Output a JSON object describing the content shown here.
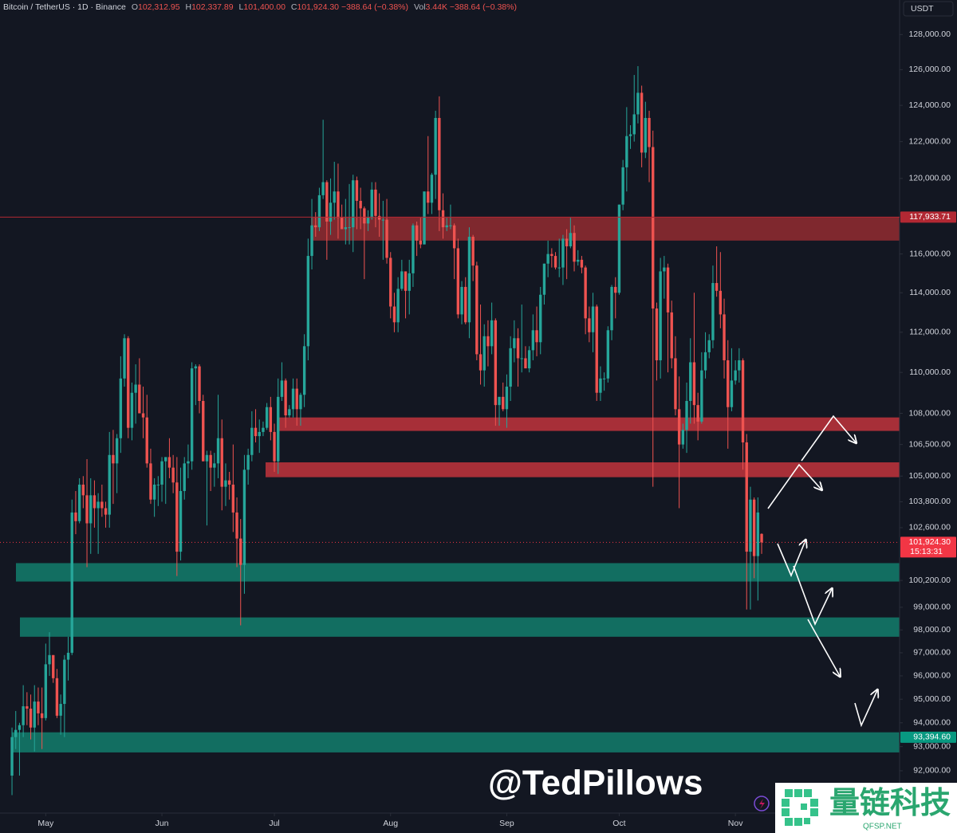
{
  "chart_data": {
    "type": "candlestick",
    "header": {
      "symbol": "Bitcoin / TetherUS · 1D · Binance",
      "o_key": "O",
      "o": "102,312.95",
      "h_key": "H",
      "h": "102,337.89",
      "l_key": "L",
      "l": "101,400.00",
      "c_key": "C",
      "c": "101,924.30",
      "change": "−388.64 (−0.38%)",
      "vol_key": "Vol",
      "vol": "3.44K",
      "vol_change": "−388.64 (−0.38%)"
    },
    "currency": "USDT",
    "watermark": "@TedPillows",
    "logo_text": "量链科技",
    "logo_sub": "QFSP.NET",
    "log_scale": true,
    "grid": false,
    "up_color": "#26a69a",
    "down_color": "#ef5350",
    "ylim": [
      90270,
      130000
    ],
    "xlim": [
      -3.2,
      236.8
    ],
    "xticks": [
      {
        "value": 9,
        "label": "May"
      },
      {
        "value": 40,
        "label": "Jun"
      },
      {
        "value": 70,
        "label": "Jul"
      },
      {
        "value": 101,
        "label": "Aug"
      },
      {
        "value": 132,
        "label": "Sep"
      },
      {
        "value": 162,
        "label": "Oct"
      },
      {
        "value": 193,
        "label": "Nov"
      }
    ],
    "yticks": [
      {
        "value": 128000,
        "label": "128,000.00"
      },
      {
        "value": 126000,
        "label": "126,000.00"
      },
      {
        "value": 124000,
        "label": "124,000.00"
      },
      {
        "value": 122000,
        "label": "122,000.00"
      },
      {
        "value": 120000,
        "label": "120,000.00"
      },
      {
        "value": 116000,
        "label": "116,000.00"
      },
      {
        "value": 114000,
        "label": "114,000.00"
      },
      {
        "value": 112000,
        "label": "112,000.00"
      },
      {
        "value": 110000,
        "label": "110,000.00"
      },
      {
        "value": 108000,
        "label": "108,000.00"
      },
      {
        "value": 106500,
        "label": "106,500.00"
      },
      {
        "value": 105000,
        "label": "105,000.00"
      },
      {
        "value": 103800,
        "label": "103,800.00"
      },
      {
        "value": 102600,
        "label": "102,600.00"
      },
      {
        "value": 100200,
        "label": "100,200.00"
      },
      {
        "value": 99000,
        "label": "99,000.00"
      },
      {
        "value": 98000,
        "label": "98,000.00"
      },
      {
        "value": 97000,
        "label": "97,000.00"
      },
      {
        "value": 96000,
        "label": "96,000.00"
      },
      {
        "value": 95000,
        "label": "95,000.00"
      },
      {
        "value": 94000,
        "label": "94,000.00"
      },
      {
        "value": 93000,
        "label": "93,000.00"
      },
      {
        "value": 92000,
        "label": "92,000.00"
      }
    ],
    "price_labels": [
      {
        "value": 117933.71,
        "label": "117,933.71",
        "color": "#b22833",
        "line": "solid"
      },
      {
        "value": 101924.3,
        "label": "101,924.30",
        "countdown": "15:13:31",
        "color": "#f23645",
        "line": "dotted"
      },
      {
        "value": 93394.6,
        "label": "93,394.60",
        "color": "#089981",
        "line": "none"
      }
    ],
    "zones": [
      {
        "top": 117933.71,
        "bottom": 116700,
        "color": "#8c2a30"
      },
      {
        "top": 107800,
        "bottom": 107150,
        "color": "#b8323b"
      },
      {
        "top": 105650,
        "bottom": 104950,
        "color": "#b8323b"
      },
      {
        "top": 100980,
        "bottom": 100150,
        "color": "#137868"
      },
      {
        "top": 98550,
        "bottom": 97700,
        "color": "#137868"
      },
      {
        "top": 93600,
        "bottom": 92760,
        "color": "#137868"
      }
    ],
    "ohlc": [
      [
        91800,
        93800,
        91000,
        93400
      ],
      [
        93400,
        94500,
        92900,
        93700
      ],
      [
        93700,
        94000,
        91800,
        93900
      ],
      [
        93900,
        95600,
        93400,
        94700
      ],
      [
        94700,
        95300,
        93900,
        94600
      ],
      [
        94600,
        95200,
        93300,
        93800
      ],
      [
        93800,
        95600,
        92800,
        94900
      ],
      [
        94900,
        95500,
        93900,
        94400
      ],
      [
        94400,
        95500,
        92900,
        94200
      ],
      [
        94200,
        97400,
        94100,
        96500
      ],
      [
        96500,
        97900,
        96000,
        96900
      ],
      [
        96900,
        96900,
        95700,
        95900
      ],
      [
        95900,
        96300,
        94200,
        94300
      ],
      [
        94300,
        95200,
        93500,
        94800
      ],
      [
        94800,
        96900,
        93400,
        96700
      ],
      [
        96700,
        97700,
        95800,
        97000
      ],
      [
        97000,
        103900,
        96900,
        103300
      ],
      [
        103300,
        104300,
        102300,
        102900
      ],
      [
        102900,
        104900,
        102800,
        104600
      ],
      [
        104600,
        105000,
        103500,
        104100
      ],
      [
        104100,
        105800,
        100800,
        102800
      ],
      [
        102800,
        104900,
        101400,
        104100
      ],
      [
        104100,
        104800,
        102600,
        103500
      ],
      [
        103500,
        104200,
        101400,
        103800
      ],
      [
        103800,
        104600,
        103100,
        103500
      ],
      [
        103500,
        103800,
        102600,
        103200
      ],
      [
        103200,
        107100,
        102600,
        106000
      ],
      [
        106000,
        107200,
        103700,
        105600
      ],
      [
        105600,
        107000,
        104200,
        106800
      ],
      [
        106800,
        110800,
        106100,
        109700
      ],
      [
        109700,
        111900,
        109300,
        111700
      ],
      [
        111700,
        111800,
        106800,
        107300
      ],
      [
        107300,
        109500,
        106700,
        109000
      ],
      [
        109000,
        110400,
        107500,
        109400
      ],
      [
        109400,
        110700,
        108000,
        108000
      ],
      [
        108000,
        109300,
        106800,
        107800
      ],
      [
        107800,
        108900,
        105400,
        105600
      ],
      [
        105600,
        106300,
        103700,
        103900
      ],
      [
        103900,
        104900,
        103100,
        104600
      ],
      [
        104600,
        105000,
        103600,
        104600
      ],
      [
        104600,
        105900,
        103800,
        105700
      ],
      [
        105700,
        105900,
        103700,
        105900
      ],
      [
        105900,
        106800,
        104900,
        105400
      ],
      [
        105400,
        106000,
        104200,
        104700
      ],
      [
        104700,
        105900,
        100400,
        101500
      ],
      [
        101500,
        105400,
        101100,
        104300
      ],
      [
        104300,
        105900,
        103900,
        105600
      ],
      [
        105600,
        106500,
        104900,
        105700
      ],
      [
        105700,
        110500,
        105300,
        110200
      ],
      [
        110200,
        110400,
        108400,
        110300
      ],
      [
        110300,
        110400,
        108000,
        108600
      ],
      [
        108600,
        108900,
        105700,
        105700
      ],
      [
        105700,
        106200,
        102700,
        106000
      ],
      [
        106000,
        106200,
        104300,
        105400
      ],
      [
        105400,
        106100,
        104500,
        105600
      ],
      [
        105600,
        108900,
        104900,
        106800
      ],
      [
        106800,
        107700,
        103400,
        104500
      ],
      [
        104500,
        105600,
        103600,
        104800
      ],
      [
        104800,
        105200,
        103900,
        104600
      ],
      [
        104600,
        106500,
        102400,
        103300
      ],
      [
        103300,
        104000,
        100800,
        102100
      ],
      [
        102100,
        103000,
        98200,
        100900
      ],
      [
        100900,
        106000,
        99600,
        105300
      ],
      [
        105300,
        106300,
        104600,
        106000
      ],
      [
        106000,
        108100,
        105700,
        107300
      ],
      [
        107300,
        108200,
        106600,
        106900
      ],
      [
        106900,
        107700,
        106100,
        107100
      ],
      [
        107100,
        107600,
        106900,
        107300
      ],
      [
        107300,
        108500,
        107200,
        108300
      ],
      [
        108300,
        108800,
        106700,
        107100
      ],
      [
        107100,
        107500,
        105200,
        105700
      ],
      [
        105700,
        109700,
        105100,
        108800
      ],
      [
        108800,
        110500,
        108600,
        109600
      ],
      [
        109600,
        109700,
        107300,
        107900
      ],
      [
        107900,
        108400,
        107800,
        108200
      ],
      [
        108200,
        109700,
        107800,
        109200
      ],
      [
        109200,
        109700,
        107400,
        108200
      ],
      [
        108200,
        109000,
        107400,
        108900
      ],
      [
        108900,
        111900,
        108300,
        111300
      ],
      [
        111300,
        116800,
        110600,
        115900
      ],
      [
        115900,
        118900,
        115200,
        117500
      ],
      [
        117500,
        118200,
        116900,
        117400
      ],
      [
        117400,
        119500,
        117200,
        119100
      ],
      [
        119100,
        123200,
        118900,
        119800
      ],
      [
        119800,
        119900,
        115700,
        117700
      ],
      [
        117700,
        120000,
        117000,
        118700
      ],
      [
        118700,
        120900,
        117800,
        119300
      ],
      [
        119300,
        120800,
        116800,
        117900
      ],
      [
        117900,
        118600,
        117300,
        117300
      ],
      [
        117300,
        118900,
        116500,
        117400
      ],
      [
        117400,
        119700,
        116500,
        117400
      ],
      [
        117400,
        120200,
        116100,
        119900
      ],
      [
        119900,
        120100,
        117300,
        118800
      ],
      [
        118800,
        119500,
        117300,
        118400
      ],
      [
        118400,
        118500,
        114700,
        117600
      ],
      [
        117600,
        118300,
        117200,
        117900
      ],
      [
        117900,
        119800,
        117800,
        119400
      ],
      [
        119400,
        119800,
        117400,
        118000
      ],
      [
        118000,
        119200,
        116900,
        117800
      ],
      [
        117800,
        118800,
        115700,
        117800
      ],
      [
        117800,
        118900,
        115500,
        115800
      ],
      [
        115800,
        116100,
        112700,
        113300
      ],
      [
        113300,
        114000,
        112000,
        112500
      ],
      [
        112500,
        114800,
        112000,
        114200
      ],
      [
        114200,
        115700,
        114100,
        115100
      ],
      [
        115100,
        115100,
        112700,
        114100
      ],
      [
        114100,
        115700,
        112900,
        115000
      ],
      [
        115000,
        117600,
        114300,
        117500
      ],
      [
        117500,
        117700,
        115900,
        116700
      ],
      [
        116700,
        117900,
        116300,
        116500
      ],
      [
        116500,
        119300,
        116500,
        119300
      ],
      [
        119300,
        122300,
        118100,
        118700
      ],
      [
        118700,
        120300,
        118100,
        120200
      ],
      [
        120200,
        123700,
        118900,
        123300
      ],
      [
        123300,
        124500,
        117200,
        118300
      ],
      [
        118300,
        119200,
        116800,
        117400
      ],
      [
        117400,
        117900,
        117200,
        117500
      ],
      [
        117500,
        118600,
        117300,
        117500
      ],
      [
        117500,
        117600,
        114700,
        116300
      ],
      [
        116300,
        116800,
        112700,
        112900
      ],
      [
        112900,
        114600,
        112400,
        114300
      ],
      [
        114300,
        114800,
        112400,
        112500
      ],
      [
        112500,
        117400,
        111700,
        116900
      ],
      [
        116900,
        117000,
        114600,
        115400
      ],
      [
        115400,
        115600,
        110600,
        110900
      ],
      [
        110900,
        113400,
        109400,
        110100
      ],
      [
        110100,
        112400,
        109300,
        111800
      ],
      [
        111800,
        112600,
        110300,
        111300
      ],
      [
        111300,
        113500,
        110900,
        112600
      ],
      [
        112600,
        112700,
        107400,
        108400
      ],
      [
        108400,
        108800,
        107400,
        108800
      ],
      [
        108800,
        109500,
        108100,
        108200
      ],
      [
        108200,
        109900,
        107300,
        109300
      ],
      [
        109300,
        111800,
        108600,
        111200
      ],
      [
        111200,
        112600,
        110500,
        111700
      ],
      [
        111700,
        112200,
        109300,
        110700
      ],
      [
        110700,
        113400,
        110000,
        110700
      ],
      [
        110700,
        111300,
        110200,
        110200
      ],
      [
        110200,
        111300,
        110000,
        111100
      ],
      [
        111100,
        112900,
        110600,
        112100
      ],
      [
        112100,
        113300,
        110800,
        111500
      ],
      [
        111500,
        114300,
        110900,
        113900
      ],
      [
        113900,
        115500,
        113400,
        115500
      ],
      [
        115500,
        116700,
        114800,
        116000
      ],
      [
        116000,
        116300,
        115300,
        115900
      ],
      [
        115900,
        116100,
        115200,
        115300
      ],
      [
        115300,
        116800,
        114800,
        115300
      ],
      [
        115300,
        117000,
        114400,
        116800
      ],
      [
        116800,
        117300,
        114700,
        116400
      ],
      [
        116400,
        117900,
        116300,
        117100
      ],
      [
        117100,
        117500,
        115100,
        115600
      ],
      [
        115600,
        116200,
        115400,
        115700
      ],
      [
        115700,
        115900,
        115000,
        115300
      ],
      [
        115300,
        115400,
        111900,
        112700
      ],
      [
        112700,
        113300,
        111500,
        112000
      ],
      [
        112000,
        114000,
        111000,
        113300
      ],
      [
        113300,
        113400,
        108600,
        109000
      ],
      [
        109000,
        110300,
        108600,
        109700
      ],
      [
        109700,
        110000,
        109100,
        109700
      ],
      [
        109700,
        112300,
        109500,
        112100
      ],
      [
        112100,
        114400,
        111600,
        114300
      ],
      [
        114300,
        114800,
        112700,
        114000
      ],
      [
        114000,
        118600,
        113900,
        118600
      ],
      [
        118600,
        121000,
        118300,
        120600
      ],
      [
        120600,
        123900,
        119300,
        122300
      ],
      [
        122300,
        122900,
        121600,
        122400
      ],
      [
        122400,
        125700,
        122000,
        123500
      ],
      [
        123500,
        126200,
        123000,
        124700
      ],
      [
        124700,
        125100,
        120600,
        121400
      ],
      [
        121400,
        124200,
        121100,
        123300
      ],
      [
        123300,
        123700,
        119800,
        121700
      ],
      [
        121700,
        122600,
        104500,
        113200
      ],
      [
        113200,
        113500,
        109600,
        110600
      ],
      [
        110600,
        115800,
        109700,
        115100
      ],
      [
        115100,
        115900,
        113700,
        115300
      ],
      [
        115300,
        115500,
        110000,
        113000
      ],
      [
        113000,
        113600,
        110200,
        110700
      ],
      [
        110700,
        111800,
        107900,
        108200
      ],
      [
        108200,
        109800,
        103500,
        106500
      ],
      [
        106500,
        107500,
        106300,
        107200
      ],
      [
        107200,
        109500,
        106100,
        108600
      ],
      [
        108600,
        111700,
        107500,
        110500
      ],
      [
        110500,
        114000,
        107500,
        108400
      ],
      [
        108400,
        109000,
        106700,
        107600
      ],
      [
        107600,
        111000,
        107500,
        110100
      ],
      [
        110100,
        112000,
        109700,
        111000
      ],
      [
        111000,
        111900,
        110700,
        111600
      ],
      [
        111600,
        115400,
        111200,
        114500
      ],
      [
        114500,
        116400,
        113800,
        114100
      ],
      [
        114100,
        116100,
        112200,
        112900
      ],
      [
        112900,
        113700,
        109700,
        110600
      ],
      [
        110600,
        111600,
        106300,
        108300
      ],
      [
        108300,
        111200,
        108100,
        109600
      ],
      [
        109600,
        110600,
        109400,
        110100
      ],
      [
        110100,
        111200,
        109500,
        110600
      ],
      [
        110600,
        110700,
        105300,
        106600
      ],
      [
        106600,
        107000,
        98900,
        101500
      ],
      [
        101500,
        104500,
        98900,
        103900
      ],
      [
        103900,
        104000,
        100300,
        101300
      ],
      [
        101300,
        104000,
        99300,
        103300
      ],
      [
        102312.95,
        102337.89,
        101400,
        101924.3
      ]
    ]
  }
}
